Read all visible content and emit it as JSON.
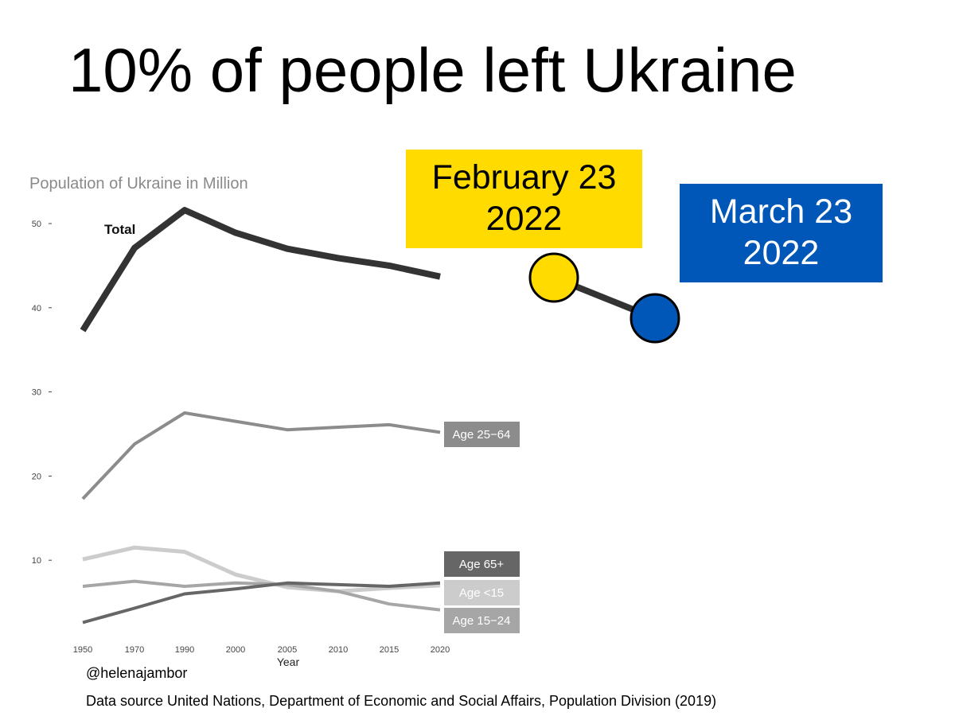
{
  "slide": {
    "title": "10% of people left Ukraine",
    "handle": "@helenajambor",
    "source": "Data source  United Nations, Department of Economic and Social Affairs, Population Division (2019)"
  },
  "callouts": {
    "february": {
      "line1": "February 23",
      "line2": "2022",
      "color": "#ffdb00"
    },
    "march": {
      "line1": "March 23",
      "line2": "2022",
      "color": "#0057b7"
    }
  },
  "chart_data": {
    "type": "line",
    "title": "Population of Ukraine in Million",
    "xlabel": "Year",
    "ylabel": "",
    "x": [
      1950,
      1970,
      1990,
      2000,
      2005,
      2010,
      2015,
      2020
    ],
    "x_ticks": [
      "1950",
      "1970",
      "1990",
      "2000",
      "2005",
      "2010",
      "2015",
      "2020"
    ],
    "ylim": [
      0,
      52
    ],
    "y_ticks": [
      10,
      20,
      30,
      40,
      50
    ],
    "grid": false,
    "series": [
      {
        "name": "Total",
        "color": "#333333",
        "values": [
          37.3,
          47.1,
          51.6,
          48.9,
          47.0,
          45.9,
          45.0,
          43.7
        ]
      },
      {
        "name": "Age 25−64",
        "color": "#8c8c8c",
        "values": [
          17.3,
          23.8,
          27.5,
          26.5,
          25.5,
          25.8,
          26.1,
          25.2
        ]
      },
      {
        "name": "Age 65+",
        "color": "#666666",
        "values": [
          2.6,
          4.3,
          6.0,
          6.6,
          7.3,
          7.1,
          6.9,
          7.3
        ]
      },
      {
        "name": "Age <15",
        "color": "#cccccc",
        "values": [
          10.1,
          11.5,
          11.0,
          8.3,
          6.8,
          6.3,
          6.7,
          7.0
        ]
      },
      {
        "name": "Age 15−24",
        "color": "#a6a6a6",
        "values": [
          6.9,
          7.5,
          6.9,
          7.3,
          7.1,
          6.3,
          4.8,
          4.1
        ]
      }
    ],
    "annotations": [
      {
        "date": "February 23 2022",
        "value": 43.7,
        "color": "#ffdb00"
      },
      {
        "date": "March 23 2022",
        "value": 39.0,
        "color": "#0057b7"
      }
    ]
  }
}
